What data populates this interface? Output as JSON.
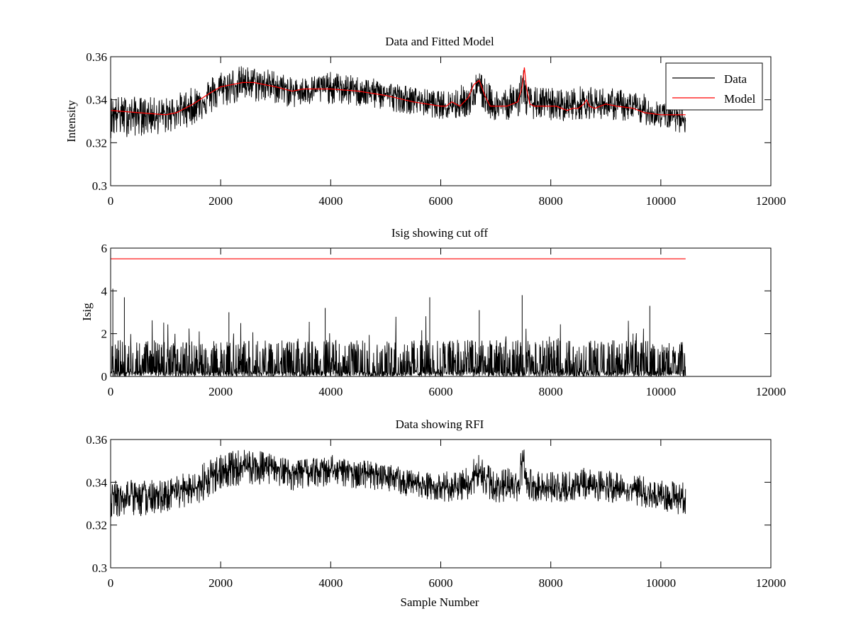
{
  "figure": {
    "xlabel": "Sample Number"
  },
  "chart_data": [
    {
      "type": "line",
      "title": "Data and Fitted Model",
      "xlabel": "",
      "ylabel": "Intensity",
      "xlim": [
        0,
        12000
      ],
      "ylim": [
        0.3,
        0.36
      ],
      "xticks": [
        0,
        2000,
        4000,
        6000,
        8000,
        10000,
        12000
      ],
      "xtick_labels": [
        "0",
        "2000",
        "4000",
        "6000",
        "8000",
        "10000",
        "12000"
      ],
      "yticks": [
        0.3,
        0.32,
        0.34,
        0.36
      ],
      "ytick_labels": [
        "0.3",
        "0.32",
        "0.34",
        "0.36"
      ],
      "grid": false,
      "legend": {
        "placement": "top-right",
        "entries": [
          {
            "name": "Data",
            "color": "#000000"
          },
          {
            "name": "Model",
            "color": "#ff0000"
          }
        ]
      },
      "series": [
        {
          "name": "Data",
          "color": "#000000",
          "style": "noisy",
          "x": [
            0,
            1000,
            1500,
            2000,
            2400,
            3000,
            3300,
            4000,
            5000,
            5500,
            6000,
            6200,
            6500,
            6700,
            6900,
            7000,
            7400,
            7500,
            7550,
            7700,
            8000,
            8300,
            8600,
            8700,
            9000,
            9500,
            10000,
            10450
          ],
          "center": [
            0.334,
            0.333,
            0.337,
            0.345,
            0.348,
            0.347,
            0.344,
            0.346,
            0.343,
            0.34,
            0.338,
            0.337,
            0.339,
            0.345,
            0.338,
            0.337,
            0.339,
            0.35,
            0.339,
            0.338,
            0.338,
            0.337,
            0.339,
            0.338,
            0.338,
            0.336,
            0.333,
            0.332
          ],
          "upper": [
            0.342,
            0.341,
            0.346,
            0.354,
            0.356,
            0.354,
            0.35,
            0.353,
            0.349,
            0.346,
            0.344,
            0.346,
            0.348,
            0.354,
            0.347,
            0.345,
            0.348,
            0.359,
            0.347,
            0.346,
            0.346,
            0.345,
            0.347,
            0.346,
            0.346,
            0.344,
            0.341,
            0.34
          ],
          "lower": [
            0.322,
            0.324,
            0.328,
            0.336,
            0.339,
            0.338,
            0.336,
            0.338,
            0.335,
            0.333,
            0.331,
            0.33,
            0.332,
            0.337,
            0.331,
            0.33,
            0.331,
            0.339,
            0.331,
            0.331,
            0.33,
            0.33,
            0.331,
            0.331,
            0.331,
            0.329,
            0.327,
            0.324
          ]
        },
        {
          "name": "Model",
          "color": "#ff0000",
          "style": "line",
          "x": [
            0,
            500,
            1000,
            1200,
            1500,
            1800,
            2000,
            2400,
            2600,
            3000,
            3300,
            3500,
            4000,
            4500,
            5000,
            5500,
            6000,
            6100,
            6200,
            6350,
            6500,
            6600,
            6700,
            6800,
            6900,
            7200,
            7400,
            7480,
            7520,
            7560,
            7620,
            7700,
            7900,
            8100,
            8300,
            8400,
            8500,
            8600,
            8650,
            8700,
            8800,
            9000,
            9200,
            9500,
            9700,
            10000,
            10450
          ],
          "y": [
            0.335,
            0.334,
            0.333,
            0.334,
            0.338,
            0.343,
            0.346,
            0.348,
            0.348,
            0.346,
            0.344,
            0.345,
            0.345,
            0.344,
            0.342,
            0.339,
            0.337,
            0.337,
            0.339,
            0.337,
            0.341,
            0.347,
            0.349,
            0.342,
            0.337,
            0.337,
            0.339,
            0.346,
            0.355,
            0.345,
            0.338,
            0.337,
            0.337,
            0.337,
            0.335,
            0.336,
            0.336,
            0.338,
            0.34,
            0.337,
            0.336,
            0.338,
            0.337,
            0.336,
            0.334,
            0.333,
            0.333
          ]
        }
      ]
    },
    {
      "type": "line",
      "title": "Isig showing cut off",
      "xlabel": "",
      "ylabel": "Isig",
      "xlim": [
        0,
        12000
      ],
      "ylim": [
        0,
        6
      ],
      "xticks": [
        0,
        2000,
        4000,
        6000,
        8000,
        10000,
        12000
      ],
      "xtick_labels": [
        "0",
        "2000",
        "4000",
        "6000",
        "8000",
        "10000",
        "12000"
      ],
      "yticks": [
        0,
        2,
        4,
        6
      ],
      "ytick_labels": [
        "0",
        "2",
        "4",
        "6"
      ],
      "grid": false,
      "series": [
        {
          "name": "Isig",
          "color": "#000000",
          "style": "spikes",
          "x": [
            0,
            10450
          ],
          "center": [
            0.8,
            0.8
          ],
          "upper": [
            1.7,
            1.7
          ],
          "lower": [
            0.0,
            0.0
          ],
          "peaks": [
            {
              "x": 40,
              "y": 4.1
            },
            {
              "x": 250,
              "y": 3.7
            },
            {
              "x": 5800,
              "y": 3.7
            },
            {
              "x": 7480,
              "y": 3.8
            },
            {
              "x": 9800,
              "y": 3.3
            },
            {
              "x": 2150,
              "y": 3.0
            },
            {
              "x": 3900,
              "y": 3.2
            },
            {
              "x": 6700,
              "y": 3.1
            }
          ]
        },
        {
          "name": "Cut off",
          "color": "#ff0000",
          "style": "line",
          "x": [
            0,
            10450
          ],
          "y": [
            5.5,
            5.5
          ]
        }
      ]
    },
    {
      "type": "line",
      "title": "Data showing RFI",
      "xlabel": "Sample Number",
      "ylabel": "",
      "xlim": [
        0,
        12000
      ],
      "ylim": [
        0.3,
        0.36
      ],
      "xticks": [
        0,
        2000,
        4000,
        6000,
        8000,
        10000,
        12000
      ],
      "xtick_labels": [
        "0",
        "2000",
        "4000",
        "6000",
        "8000",
        "10000",
        "12000"
      ],
      "yticks": [
        0.3,
        0.32,
        0.34,
        0.36
      ],
      "ytick_labels": [
        "0.3",
        "0.32",
        "0.34",
        "0.36"
      ],
      "grid": false,
      "series": [
        {
          "name": "Data",
          "color": "#000000",
          "style": "noisy",
          "x": [
            0,
            1000,
            1500,
            2000,
            2400,
            3000,
            3300,
            4000,
            5000,
            5500,
            6000,
            6200,
            6500,
            6700,
            6900,
            7000,
            7400,
            7500,
            7550,
            7700,
            8000,
            8300,
            8600,
            8700,
            9000,
            9500,
            10000,
            10450
          ],
          "center": [
            0.334,
            0.333,
            0.337,
            0.345,
            0.348,
            0.347,
            0.344,
            0.346,
            0.343,
            0.34,
            0.338,
            0.337,
            0.339,
            0.345,
            0.338,
            0.337,
            0.339,
            0.35,
            0.339,
            0.338,
            0.338,
            0.337,
            0.339,
            0.338,
            0.338,
            0.336,
            0.333,
            0.332
          ],
          "upper": [
            0.342,
            0.341,
            0.346,
            0.354,
            0.356,
            0.354,
            0.35,
            0.353,
            0.349,
            0.346,
            0.344,
            0.346,
            0.348,
            0.354,
            0.347,
            0.345,
            0.348,
            0.359,
            0.347,
            0.346,
            0.346,
            0.345,
            0.347,
            0.346,
            0.346,
            0.344,
            0.341,
            0.34
          ],
          "lower": [
            0.322,
            0.324,
            0.328,
            0.336,
            0.339,
            0.338,
            0.336,
            0.338,
            0.335,
            0.333,
            0.331,
            0.33,
            0.332,
            0.337,
            0.331,
            0.33,
            0.331,
            0.339,
            0.331,
            0.331,
            0.33,
            0.33,
            0.331,
            0.331,
            0.331,
            0.329,
            0.327,
            0.324
          ]
        }
      ]
    }
  ]
}
